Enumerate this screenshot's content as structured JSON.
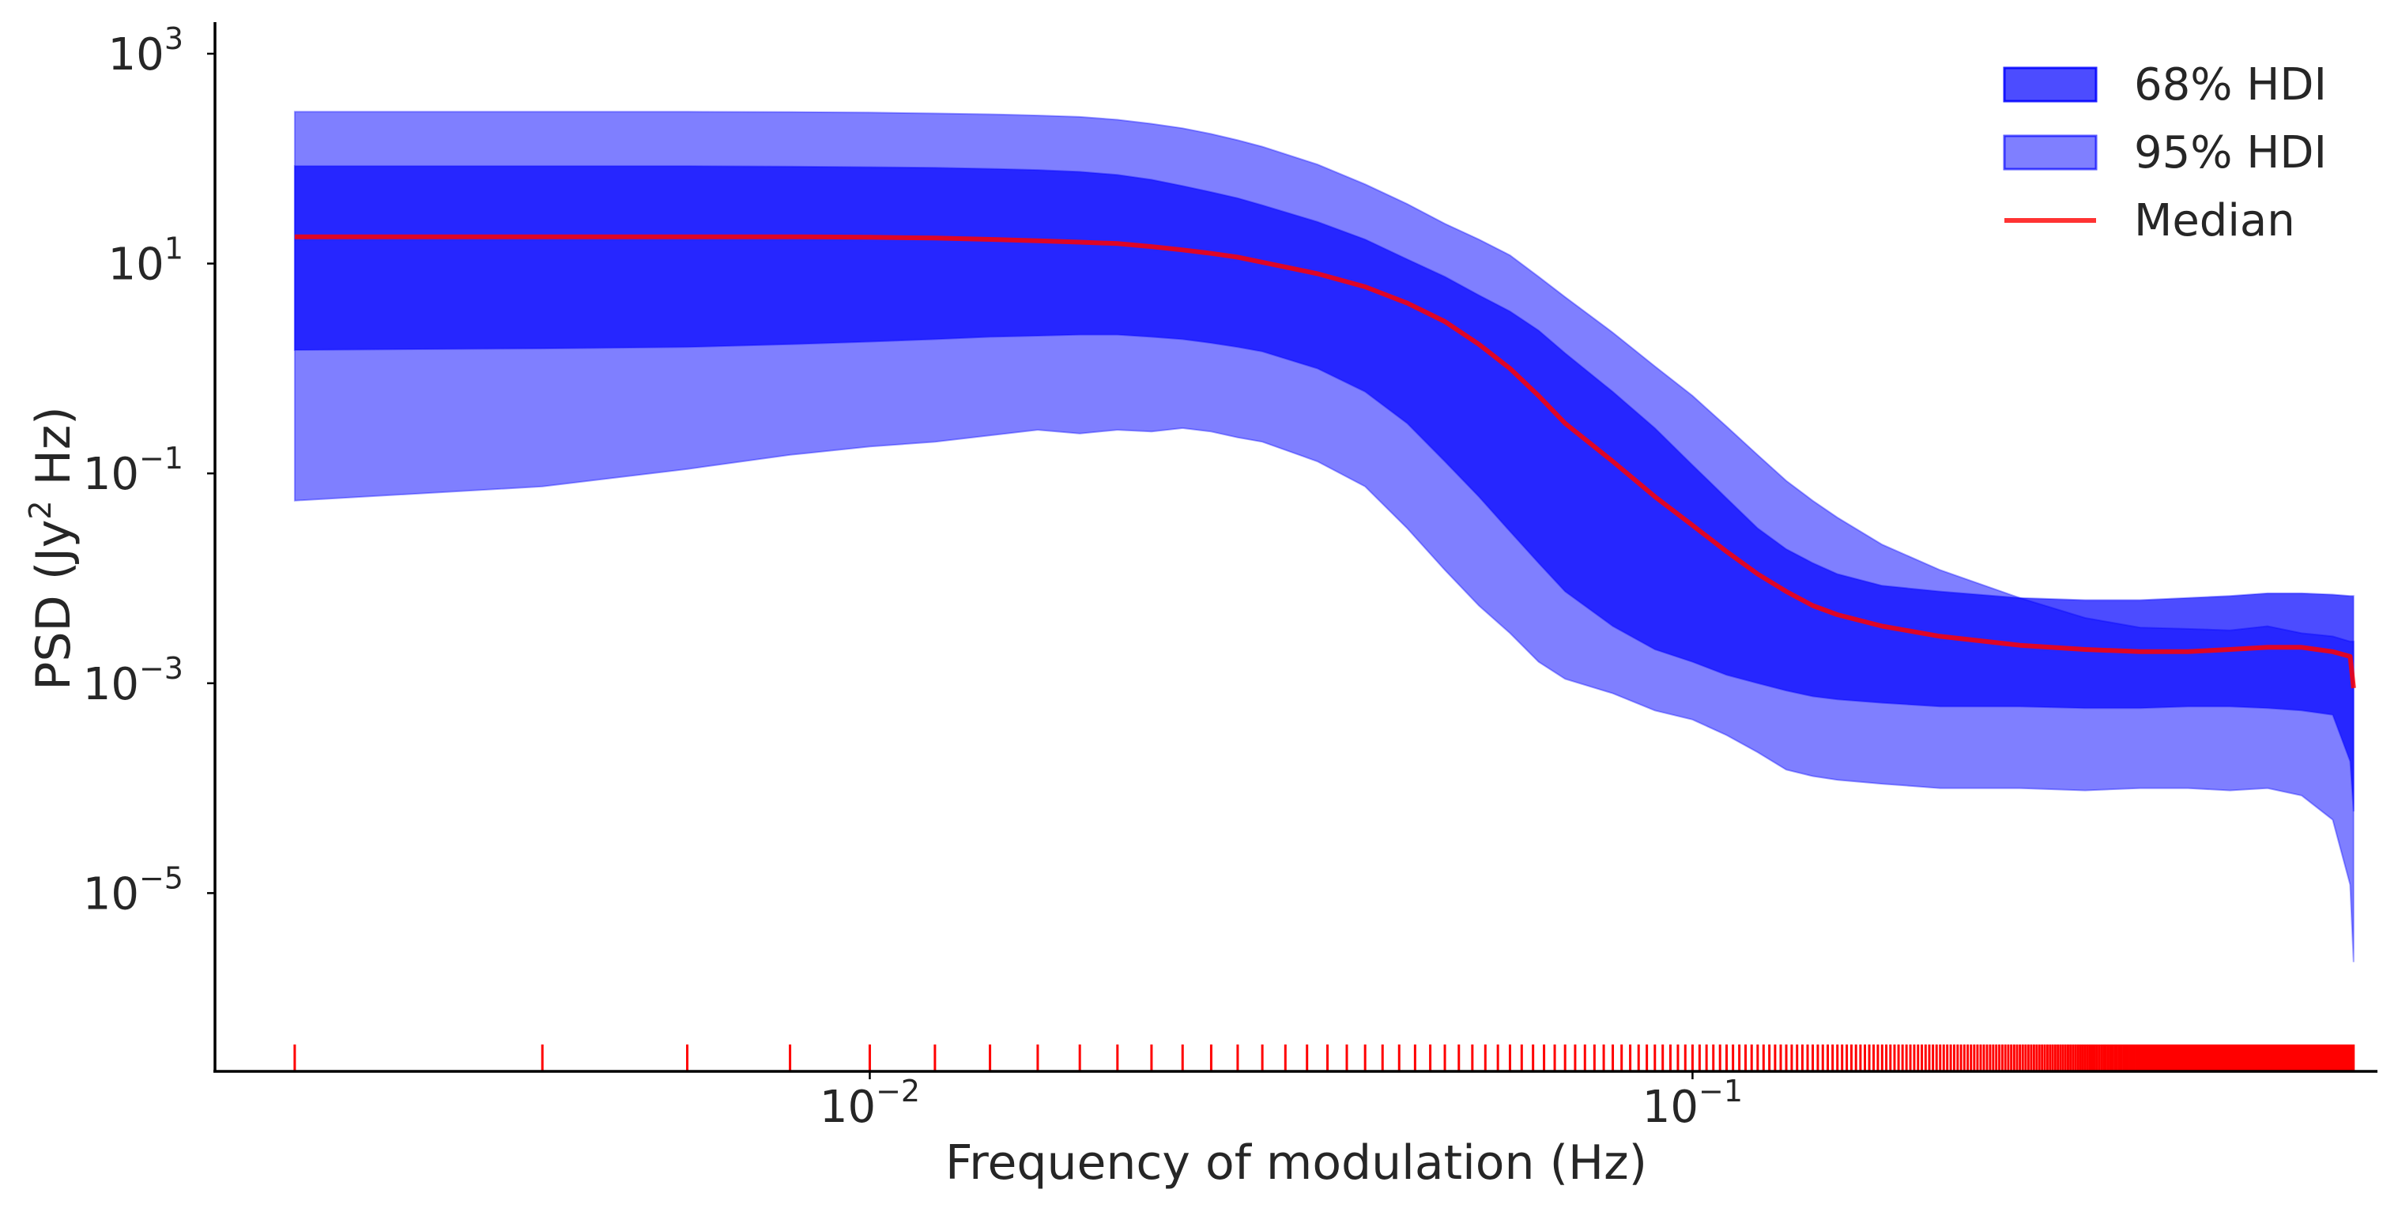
{
  "chart_data": {
    "type": "area",
    "title": "",
    "xlabel": "Frequency of modulation (Hz)",
    "ylabel_parts": [
      "PSD (Jy",
      "2",
      " Hz)"
    ],
    "xscale": "log",
    "yscale": "log",
    "xlim": [
      0.0016,
      0.68
    ],
    "ylim": [
      2e-07,
      2000
    ],
    "grid": false,
    "legend_position": "top-right",
    "x_ticks": [
      {
        "base": "10",
        "exp": "−2",
        "value": 0.01
      },
      {
        "base": "10",
        "exp": "−1",
        "value": 0.1
      }
    ],
    "y_ticks": [
      {
        "base": "10",
        "exp": "3",
        "value": 1000
      },
      {
        "base": "10",
        "exp": "1",
        "value": 10
      },
      {
        "base": "10",
        "exp": "−1",
        "value": 0.1
      },
      {
        "base": "10",
        "exp": "−3",
        "value": 0.001
      },
      {
        "base": "10",
        "exp": "−5",
        "value": 1e-05
      }
    ],
    "colors": {
      "hdi68": "#0000ff",
      "hdi95": "#0000ff",
      "median": "#ff0000",
      "rug": "#ff0000",
      "axis": "#000000"
    },
    "frequency_step": 0.002,
    "frequency_count": 318,
    "series": [
      {
        "name": "95% HDI",
        "x": [
          0.002,
          0.004,
          0.006,
          0.008,
          0.01,
          0.012,
          0.014,
          0.016,
          0.018,
          0.02,
          0.022,
          0.024,
          0.026,
          0.028,
          0.03,
          0.035,
          0.04,
          0.045,
          0.05,
          0.055,
          0.06,
          0.065,
          0.07,
          0.08,
          0.09,
          0.1,
          0.11,
          0.12,
          0.13,
          0.14,
          0.15,
          0.17,
          0.2,
          0.25,
          0.3,
          0.35,
          0.4,
          0.45,
          0.5,
          0.55,
          0.6,
          0.63,
          0.636
        ],
        "upper": [
          280,
          280,
          280,
          278,
          275,
          270,
          265,
          258,
          250,
          235,
          215,
          195,
          172,
          150,
          130,
          88,
          57,
          37,
          24,
          17,
          12,
          7.5,
          4.8,
          2.2,
          1.05,
          0.55,
          0.28,
          0.15,
          0.085,
          0.055,
          0.038,
          0.021,
          0.012,
          0.0065,
          0.0042,
          0.0034,
          0.0033,
          0.0032,
          0.0035,
          0.003,
          0.0028,
          0.0025,
          0.0025
        ],
        "lower": [
          0.055,
          0.075,
          0.11,
          0.15,
          0.18,
          0.2,
          0.23,
          0.26,
          0.24,
          0.26,
          0.25,
          0.27,
          0.25,
          0.22,
          0.2,
          0.13,
          0.075,
          0.03,
          0.012,
          0.0055,
          0.003,
          0.0016,
          0.0011,
          0.0008,
          0.00055,
          0.00045,
          0.00032,
          0.00022,
          0.00015,
          0.00013,
          0.00012,
          0.00011,
          0.0001,
          0.0001,
          9.5e-05,
          0.0001,
          0.0001,
          9.5e-05,
          0.0001,
          8.5e-05,
          5e-05,
          1.2e-05,
          2.2e-06
        ]
      },
      {
        "name": "68% HDI",
        "x": [
          0.002,
          0.004,
          0.006,
          0.008,
          0.01,
          0.012,
          0.014,
          0.016,
          0.018,
          0.02,
          0.022,
          0.024,
          0.026,
          0.028,
          0.03,
          0.035,
          0.04,
          0.045,
          0.05,
          0.055,
          0.06,
          0.065,
          0.07,
          0.08,
          0.09,
          0.1,
          0.11,
          0.12,
          0.13,
          0.14,
          0.15,
          0.17,
          0.2,
          0.25,
          0.3,
          0.35,
          0.4,
          0.45,
          0.5,
          0.55,
          0.6,
          0.63,
          0.636
        ],
        "upper": [
          85,
          85,
          85,
          84,
          83,
          82,
          80,
          78,
          75,
          70,
          63,
          55,
          48,
          42,
          36,
          25,
          17,
          11,
          7.5,
          5,
          3.5,
          2.3,
          1.4,
          0.6,
          0.27,
          0.12,
          0.058,
          0.03,
          0.019,
          0.014,
          0.011,
          0.0085,
          0.0075,
          0.0065,
          0.0062,
          0.0062,
          0.0065,
          0.0068,
          0.0072,
          0.0072,
          0.007,
          0.0068,
          0.0068
        ],
        "lower": [
          1.5,
          1.55,
          1.6,
          1.7,
          1.8,
          1.9,
          2.0,
          2.05,
          2.1,
          2.1,
          2.0,
          1.9,
          1.75,
          1.6,
          1.45,
          1.0,
          0.6,
          0.3,
          0.13,
          0.06,
          0.028,
          0.014,
          0.0075,
          0.0035,
          0.0021,
          0.0016,
          0.0012,
          0.001,
          0.00085,
          0.00075,
          0.0007,
          0.00065,
          0.0006,
          0.0006,
          0.00058,
          0.00058,
          0.0006,
          0.0006,
          0.00058,
          0.00055,
          0.0005,
          0.00018,
          6e-05
        ]
      },
      {
        "name": "Median",
        "x": [
          0.002,
          0.004,
          0.006,
          0.008,
          0.01,
          0.012,
          0.014,
          0.016,
          0.018,
          0.02,
          0.022,
          0.024,
          0.026,
          0.028,
          0.03,
          0.035,
          0.04,
          0.045,
          0.05,
          0.055,
          0.06,
          0.065,
          0.07,
          0.08,
          0.09,
          0.1,
          0.11,
          0.12,
          0.13,
          0.14,
          0.15,
          0.17,
          0.2,
          0.25,
          0.3,
          0.35,
          0.4,
          0.45,
          0.5,
          0.55,
          0.6,
          0.63,
          0.636
        ],
        "values": [
          18,
          18,
          18,
          18,
          17.8,
          17.5,
          17,
          16.5,
          16,
          15.5,
          14.5,
          13.5,
          12.5,
          11.5,
          10.3,
          8,
          6,
          4.2,
          2.8,
          1.7,
          1.0,
          0.55,
          0.3,
          0.13,
          0.06,
          0.032,
          0.018,
          0.011,
          0.0075,
          0.0055,
          0.0045,
          0.0035,
          0.0028,
          0.0023,
          0.0021,
          0.002,
          0.002,
          0.0021,
          0.0022,
          0.0022,
          0.002,
          0.0018,
          0.0009
        ]
      }
    ],
    "legend": [
      {
        "label": "68% HDI",
        "kind": "patch"
      },
      {
        "label": "95% HDI",
        "kind": "patch"
      },
      {
        "label": "Median",
        "kind": "line"
      }
    ]
  }
}
